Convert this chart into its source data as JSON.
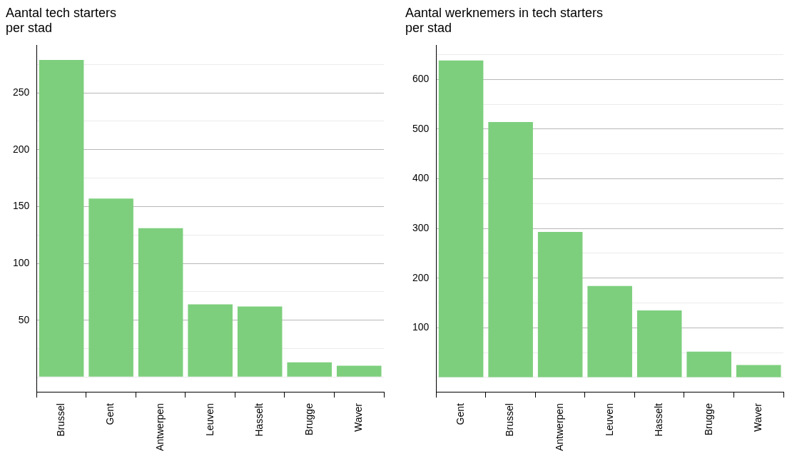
{
  "chart_data": [
    {
      "type": "bar",
      "title": "Aantal tech starters\nper stad",
      "categories": [
        "Brussel",
        "Gent",
        "Antwerpen",
        "Leuven",
        "Hasselt",
        "Brugge",
        "Waver"
      ],
      "values": [
        279,
        157,
        131,
        64,
        62,
        13,
        10
      ],
      "color": "#7dcf7d",
      "ylim": [
        -13,
        292
      ],
      "yticks": [
        {
          "value": 0,
          "label": null
        },
        {
          "value": 25,
          "label": null
        },
        50,
        {
          "value": 75,
          "label": null
        },
        100,
        {
          "value": 125,
          "label": null
        },
        150,
        {
          "value": 175,
          "label": null
        },
        200,
        {
          "value": 225,
          "label": null
        },
        250,
        {
          "value": 275,
          "label": null
        }
      ],
      "grid": "y",
      "legend": false
    },
    {
      "type": "bar",
      "title": "Aantal werknemers in tech starters\nper stad",
      "categories": [
        "Gent",
        "Brussel",
        "Antwerpen",
        "Leuven",
        "Hasselt",
        "Brugge",
        "Waver"
      ],
      "values": [
        638,
        514,
        293,
        184,
        135,
        52,
        25
      ],
      "color": "#7dcf7d",
      "ylim": [
        -29,
        669
      ],
      "yticks": [
        {
          "value": 0,
          "label": null
        },
        {
          "value": 50,
          "label": null
        },
        100,
        {
          "value": 150,
          "label": null
        },
        200,
        {
          "value": 250,
          "label": null
        },
        300,
        {
          "value": 350,
          "label": null
        },
        400,
        {
          "value": 450,
          "label": null
        },
        500,
        {
          "value": 550,
          "label": null
        },
        600,
        {
          "value": 650,
          "label": null
        }
      ],
      "grid": "y",
      "legend": false
    }
  ]
}
